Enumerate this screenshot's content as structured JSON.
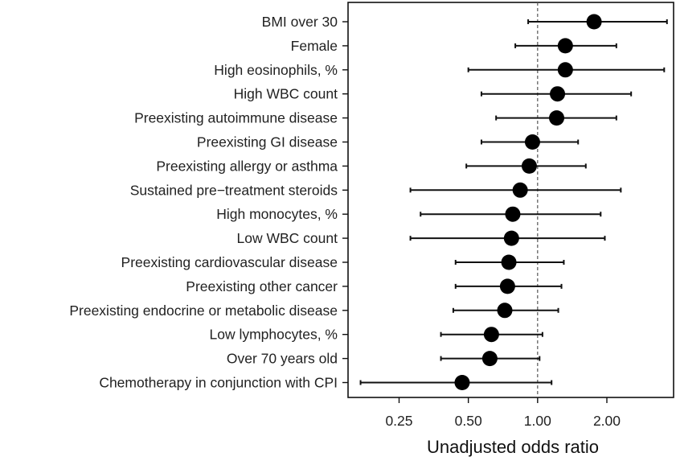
{
  "chart_data": {
    "type": "forest",
    "xlabel": "Unadjusted odds ratio",
    "x_scale": "log2",
    "xlim": [
      0.15,
      3.9
    ],
    "x_ticks": [
      {
        "value": 0.25,
        "label": "0.25"
      },
      {
        "value": 0.5,
        "label": "0.50"
      },
      {
        "value": 1.0,
        "label": "1.00"
      },
      {
        "value": 2.0,
        "label": "2.00"
      }
    ],
    "reference_line": 1.0,
    "grid": false,
    "rows": [
      {
        "label": "BMI over 30",
        "estimate": 1.76,
        "lower": 0.91,
        "upper": 3.65
      },
      {
        "label": "Female",
        "estimate": 1.32,
        "lower": 0.8,
        "upper": 2.2
      },
      {
        "label": "High eosinophils, %",
        "estimate": 1.32,
        "lower": 0.5,
        "upper": 3.55
      },
      {
        "label": "High WBC count",
        "estimate": 1.22,
        "lower": 0.57,
        "upper": 2.55
      },
      {
        "label": "Preexisting autoimmune disease",
        "estimate": 1.21,
        "lower": 0.66,
        "upper": 2.2
      },
      {
        "label": "Preexisting GI disease",
        "estimate": 0.95,
        "lower": 0.57,
        "upper": 1.5
      },
      {
        "label": "Preexisting allergy or asthma",
        "estimate": 0.92,
        "lower": 0.49,
        "upper": 1.62
      },
      {
        "label": "Sustained pre−treatment steroids",
        "estimate": 0.84,
        "lower": 0.28,
        "upper": 2.3
      },
      {
        "label": "High monocytes, %",
        "estimate": 0.78,
        "lower": 0.31,
        "upper": 1.88
      },
      {
        "label": "Low WBC count",
        "estimate": 0.77,
        "lower": 0.28,
        "upper": 1.96
      },
      {
        "label": "Preexisting cardiovascular disease",
        "estimate": 0.75,
        "lower": 0.44,
        "upper": 1.3
      },
      {
        "label": "Preexisting other cancer",
        "estimate": 0.74,
        "lower": 0.44,
        "upper": 1.27
      },
      {
        "label": "Preexisting endocrine or metabolic disease",
        "estimate": 0.72,
        "lower": 0.43,
        "upper": 1.23
      },
      {
        "label": "Low lymphocytes, %",
        "estimate": 0.63,
        "lower": 0.38,
        "upper": 1.05
      },
      {
        "label": "Over 70 years old",
        "estimate": 0.62,
        "lower": 0.38,
        "upper": 1.02
      },
      {
        "label": "Chemotherapy in conjunction with CPI",
        "estimate": 0.47,
        "lower": 0.17,
        "upper": 1.15
      }
    ]
  }
}
